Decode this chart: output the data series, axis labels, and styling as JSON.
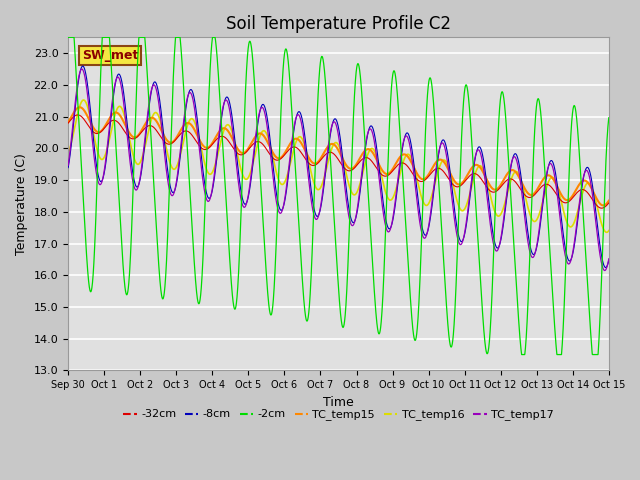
{
  "title": "Soil Temperature Profile C2",
  "xlabel": "Time",
  "ylabel": "Temperature (C)",
  "ylim": [
    13.0,
    23.5
  ],
  "yticks": [
    13.0,
    14.0,
    15.0,
    16.0,
    17.0,
    18.0,
    19.0,
    20.0,
    21.0,
    22.0,
    23.0
  ],
  "xtick_labels": [
    "Sep 30",
    "Oct 1",
    "Oct 2",
    "Oct 3",
    "Oct 4",
    "Oct 5",
    "Oct 6",
    "Oct 7",
    "Oct 8",
    "Oct 9",
    "Oct 10",
    "Oct 11",
    "Oct 12",
    "Oct 13",
    "Oct 14",
    "Oct 15"
  ],
  "annotation_text": "SW_met",
  "bg_outer": "#c8c8c8",
  "bg_inner": "#e0e0e0",
  "grid_color": "#ffffff",
  "colors": {
    "32cm": "#dd0000",
    "8cm": "#0000bb",
    "2cm": "#00dd00",
    "TC_temp15": "#ff8800",
    "TC_temp16": "#dddd00",
    "TC_temp17": "#9900bb"
  },
  "title_fontsize": 12,
  "axis_fontsize": 9,
  "tick_fontsize": 8,
  "legend_fontsize": 8
}
